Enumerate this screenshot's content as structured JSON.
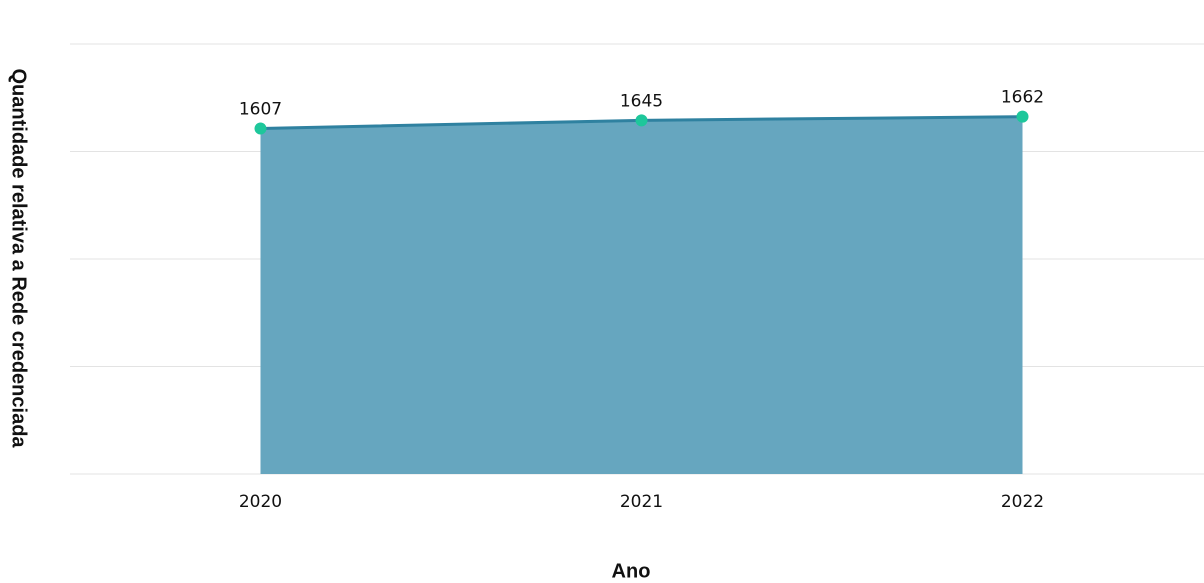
{
  "chart_data": {
    "type": "area",
    "categories": [
      "2020",
      "2021",
      "2022"
    ],
    "values": [
      1607,
      1645,
      1662
    ],
    "xlabel": "Ano",
    "ylabel": "Quantidade relativa a Rede credenciada",
    "color": "#66a6bf",
    "line_color": "#2f81a0",
    "marker_color": "#1ec79b",
    "ylim": [
      0,
      2000
    ],
    "yticks": [
      0,
      500,
      1000,
      1500,
      2000
    ],
    "grid": true
  }
}
